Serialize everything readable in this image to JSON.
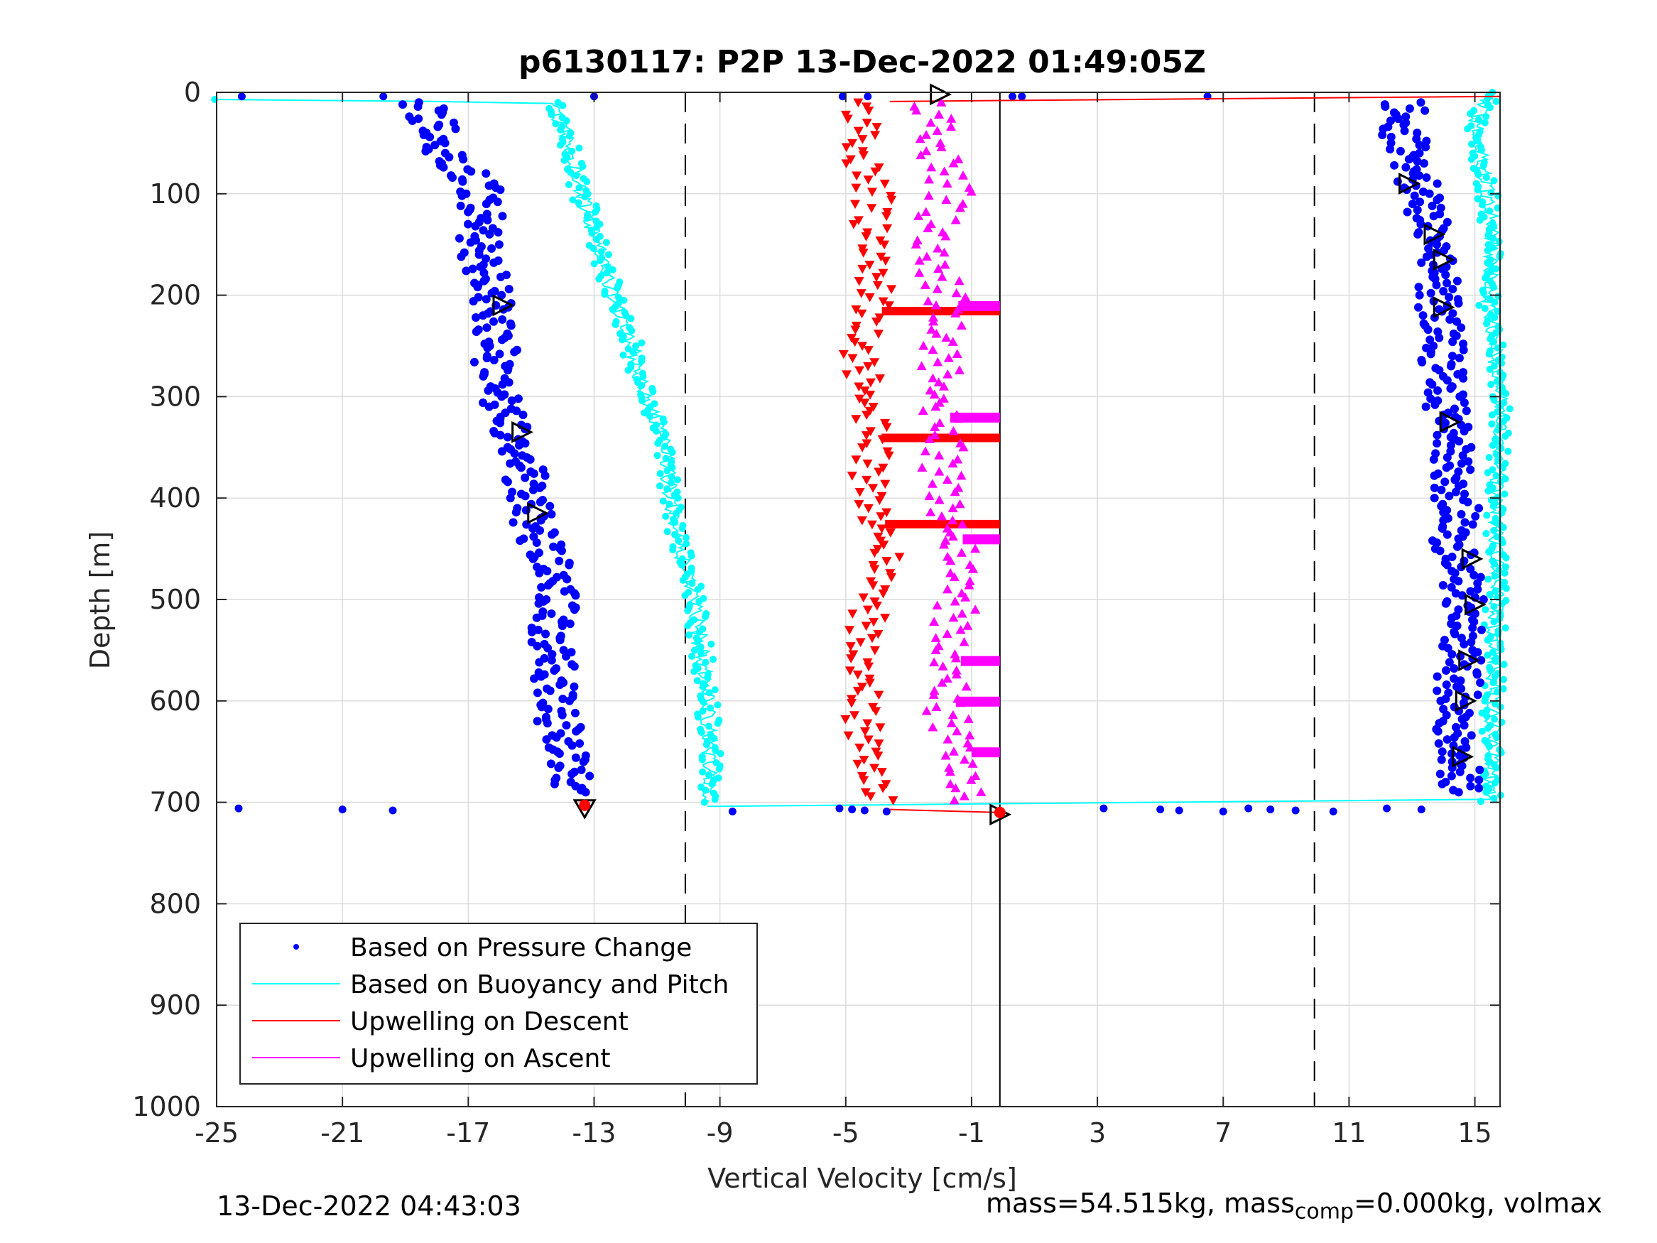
{
  "chart_data": {
    "type": "scatter",
    "title": "p6130117: P2P 13-Dec-2022 01:49:05Z",
    "xlabel": "Vertical Velocity [cm/s]",
    "ylabel": "Depth [m]",
    "xlim": [
      -25,
      15.8
    ],
    "ylim": [
      0,
      1000
    ],
    "y_reversed": true,
    "grid": true,
    "x_ticks": [
      -25,
      -21,
      -17,
      -13,
      -9,
      -5,
      -1,
      3,
      7,
      11,
      15
    ],
    "y_ticks": [
      0,
      100,
      200,
      300,
      400,
      500,
      600,
      700,
      800,
      900,
      1000
    ],
    "reference_lines": [
      {
        "x": -10.1,
        "style": "dashed",
        "color": "#000000"
      },
      {
        "x": -0.1,
        "style": "solid",
        "color": "#000000"
      },
      {
        "x": 9.9,
        "style": "dashed",
        "color": "#000000"
      }
    ],
    "legend_position": "bottom-left",
    "series": [
      {
        "name": "Based on Pressure Change",
        "marker": "dot",
        "color": "#0000ff",
        "descent": [
          [
            -18.2,
            10
          ],
          [
            -17.8,
            30
          ],
          [
            -17.5,
            60
          ],
          [
            -16.6,
            80
          ],
          [
            -16.2,
            100
          ],
          [
            -16.3,
            150
          ],
          [
            -16.0,
            200
          ],
          [
            -15.8,
            250
          ],
          [
            -15.7,
            300
          ],
          [
            -15.3,
            340
          ],
          [
            -14.8,
            380
          ],
          [
            -14.6,
            420
          ],
          [
            -14.1,
            460
          ],
          [
            -13.9,
            500
          ],
          [
            -14.0,
            550
          ],
          [
            -13.9,
            600
          ],
          [
            -13.6,
            650
          ],
          [
            -13.3,
            690
          ]
        ],
        "ascent": [
          [
            13.1,
            10
          ],
          [
            13.0,
            40
          ],
          [
            13.4,
            60
          ],
          [
            13.5,
            100
          ],
          [
            13.9,
            130
          ],
          [
            14.1,
            160
          ],
          [
            14.2,
            200
          ],
          [
            14.3,
            250
          ],
          [
            14.4,
            300
          ],
          [
            14.6,
            330
          ],
          [
            14.6,
            370
          ],
          [
            14.8,
            410
          ],
          [
            14.6,
            450
          ],
          [
            14.9,
            480
          ],
          [
            15.0,
            510
          ],
          [
            14.9,
            550
          ],
          [
            14.8,
            600
          ],
          [
            14.7,
            640
          ],
          [
            14.9,
            690
          ]
        ]
      },
      {
        "name": "Based on Buoyancy and Pitch",
        "marker": "line",
        "color": "#00ffff",
        "descent": [
          [
            -25,
            7
          ],
          [
            -14.3,
            10
          ],
          [
            -13.8,
            50
          ],
          [
            -13.4,
            100
          ],
          [
            -12.9,
            150
          ],
          [
            -12.4,
            200
          ],
          [
            -11.8,
            250
          ],
          [
            -11.4,
            300
          ],
          [
            -10.7,
            350
          ],
          [
            -10.6,
            400
          ],
          [
            -10.3,
            450
          ],
          [
            -9.8,
            500
          ],
          [
            -9.6,
            550
          ],
          [
            -9.4,
            600
          ],
          [
            -9.3,
            650
          ],
          [
            -9.4,
            700
          ]
        ],
        "ascent": [
          [
            15.5,
            0
          ],
          [
            15.0,
            30
          ],
          [
            15.2,
            60
          ],
          [
            15.4,
            100
          ],
          [
            15.6,
            150
          ],
          [
            15.4,
            200
          ],
          [
            15.6,
            250
          ],
          [
            15.8,
            300
          ],
          [
            15.5,
            700
          ]
        ]
      },
      {
        "name": "Upwelling on Descent",
        "marker": "triangle-down",
        "color": "#ff0000",
        "points": [
          [
            -4.3,
            20
          ],
          [
            -4.2,
            60
          ],
          [
            -3.8,
            100
          ],
          [
            -3.9,
            150
          ],
          [
            -3.7,
            200
          ],
          [
            -4.2,
            250
          ],
          [
            -4.1,
            300
          ],
          [
            -3.8,
            350
          ],
          [
            -4.0,
            400
          ],
          [
            -3.5,
            450
          ],
          [
            -3.9,
            500
          ],
          [
            -4.1,
            550
          ],
          [
            -4.2,
            600
          ],
          [
            -4.0,
            650
          ],
          [
            -3.6,
            700
          ]
        ],
        "bands": [
          215,
          340,
          425
        ]
      },
      {
        "name": "Upwelling on Ascent",
        "marker": "triangle-up",
        "color": "#ff00ff",
        "points": [
          [
            -2.0,
            20
          ],
          [
            -1.6,
            60
          ],
          [
            -1.3,
            100
          ],
          [
            -2.1,
            150
          ],
          [
            -1.4,
            200
          ],
          [
            -1.5,
            250
          ],
          [
            -1.8,
            300
          ],
          [
            -1.5,
            350
          ],
          [
            -1.6,
            400
          ],
          [
            -1.2,
            450
          ],
          [
            -1.1,
            500
          ],
          [
            -1.3,
            550
          ],
          [
            -1.5,
            600
          ],
          [
            -1.0,
            650
          ],
          [
            -0.8,
            700
          ]
        ],
        "bands": [
          210,
          320,
          440,
          560,
          600,
          650
        ]
      }
    ]
  },
  "footer": {
    "timestamp": "13-Dec-2022 04:43:03",
    "mass_text": "mass=54.515kg, mass",
    "mass_sub": "comp",
    "mass_rest": "=0.000kg, volmax"
  }
}
